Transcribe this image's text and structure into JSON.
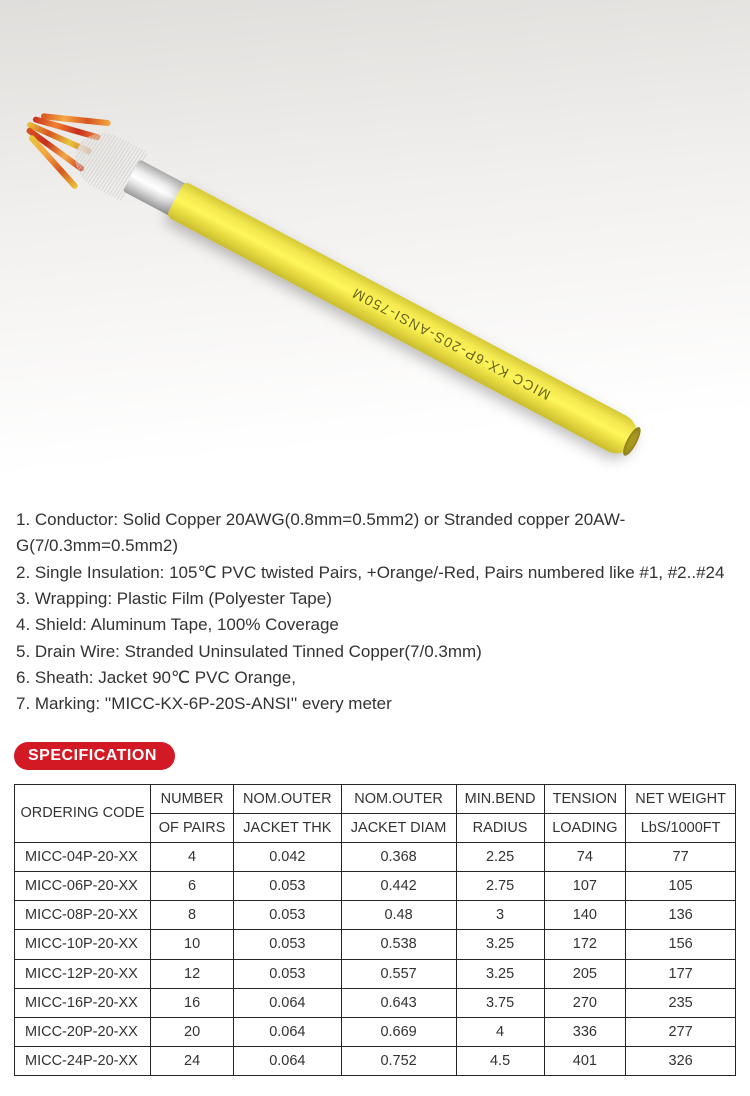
{
  "photo": {
    "cable_marking": "MICC  KX-6P-20S-ANSI-750M"
  },
  "description": {
    "line1": "1. Conductor: Solid Copper 20AWG(0.8mm=0.5mm2) or Stranded copper 20AW-",
    "line1b": "G(7/0.3mm=0.5mm2)",
    "line2": "2. Single Insulation: 105℃ PVC twisted Pairs, +Orange/-Red, Pairs numbered like #1, #2..#24",
    "line3": "3.  Wrapping: Plastic Film (Polyester Tape)",
    "line4": "4. Shield: Aluminum Tape, 100% Coverage",
    "line5": "5. Drain Wire: Stranded Uninsulated Tinned Copper(7/0.3mm)",
    "line6": "6. Sheath: Jacket  90℃ PVC Orange,",
    "line7": "7. Marking:  ''MICC-KX-6P-20S-ANSI'' every meter"
  },
  "badge": {
    "label": "SPECIFICATION",
    "bg_color": "#d31a24",
    "text_color": "#ffffff"
  },
  "table": {
    "headers": {
      "code_top": "ORDERING CODE",
      "c1_top": "NUMBER",
      "c1_bot": "OF PAIRS",
      "c2_top": "NOM.OUTER",
      "c2_bot": "JACKET THK",
      "c3_top": "NOM.OUTER",
      "c3_bot": "JACKET DIAM",
      "c4_top": "MIN.BEND",
      "c4_bot": "RADIUS",
      "c5_top": "TENSION",
      "c5_bot": "LOADING",
      "c6_top": "NET WEIGHT",
      "c6_bot": "LbS/1000FT"
    },
    "rows": [
      {
        "code": "MICC-04P-20-XX",
        "pairs": "4",
        "thk": "0.042",
        "diam": "0.368",
        "bend": "2.25",
        "tension": "74",
        "weight": "77"
      },
      {
        "code": "MICC-06P-20-XX",
        "pairs": "6",
        "thk": "0.053",
        "diam": "0.442",
        "bend": "2.75",
        "tension": "107",
        "weight": "105"
      },
      {
        "code": "MICC-08P-20-XX",
        "pairs": "8",
        "thk": "0.053",
        "diam": "0.48",
        "bend": "3",
        "tension": "140",
        "weight": "136"
      },
      {
        "code": "MICC-10P-20-XX",
        "pairs": "10",
        "thk": "0.053",
        "diam": "0.538",
        "bend": "3.25",
        "tension": "172",
        "weight": "156"
      },
      {
        "code": "MICC-12P-20-XX",
        "pairs": "12",
        "thk": "0.053",
        "diam": "0.557",
        "bend": "3.25",
        "tension": "205",
        "weight": "177"
      },
      {
        "code": "MICC-16P-20-XX",
        "pairs": "16",
        "thk": "0.064",
        "diam": "0.643",
        "bend": "3.75",
        "tension": "270",
        "weight": "235"
      },
      {
        "code": "MICC-20P-20-XX",
        "pairs": "20",
        "thk": "0.064",
        "diam": "0.669",
        "bend": "4",
        "tension": "336",
        "weight": "277"
      },
      {
        "code": "MICC-24P-20-XX",
        "pairs": "24",
        "thk": "0.064",
        "diam": "0.752",
        "bend": "4.5",
        "tension": "401",
        "weight": "326"
      }
    ],
    "border_color": "#262626",
    "font_size_pt": 11
  },
  "colors": {
    "sheath_yellow": "#f4e850",
    "wire_orange": "#f4a843",
    "wire_red": "#c92f1e",
    "background": "#ffffff",
    "text": "#333333"
  }
}
